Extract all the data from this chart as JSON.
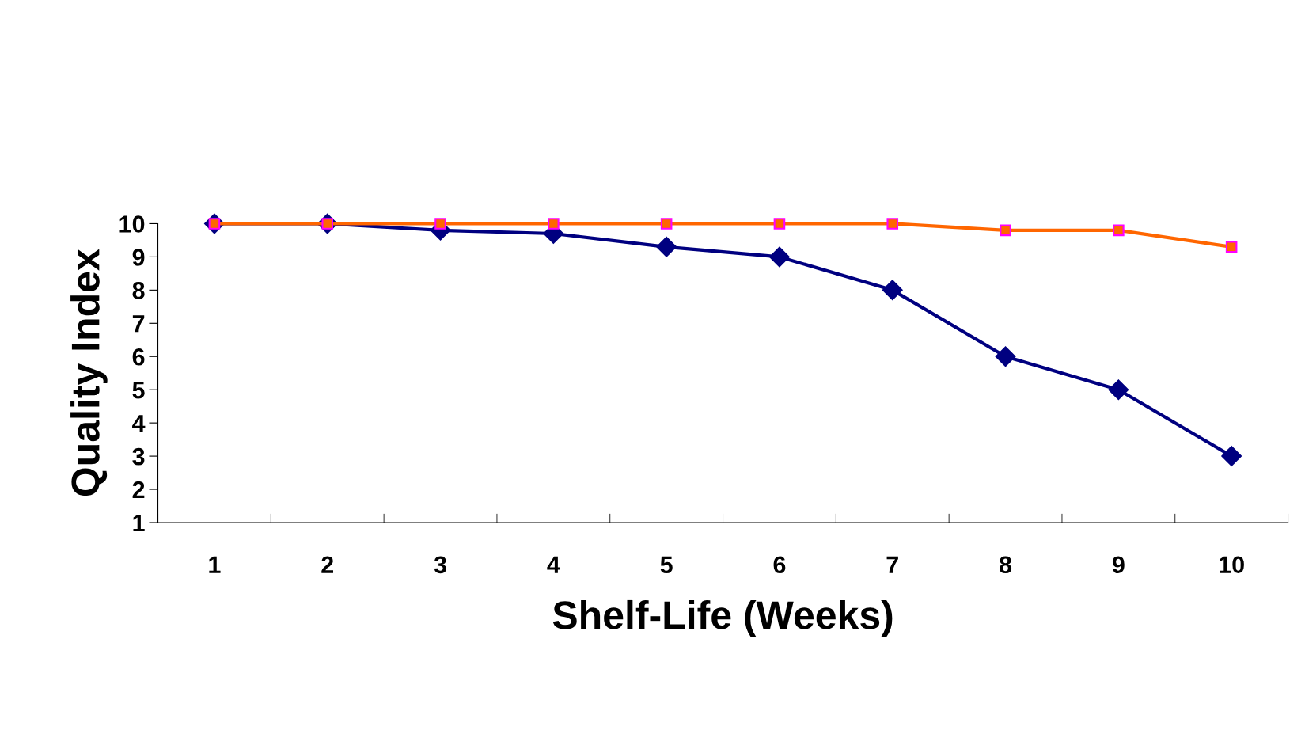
{
  "chart_data": {
    "type": "line",
    "xlabel": "Shelf-Life (Weeks)",
    "ylabel": "Quality Index",
    "categories": [
      "1",
      "2",
      "3",
      "4",
      "5",
      "6",
      "7",
      "8",
      "9",
      "10"
    ],
    "series": [
      {
        "color": "#000080",
        "marker": "diamond",
        "values": [
          10,
          10,
          9.8,
          9.7,
          9.3,
          9.0,
          8.0,
          6.0,
          5.0,
          3.0
        ]
      },
      {
        "color": "#ff6600",
        "marker": "square",
        "values": [
          10,
          10,
          10,
          10,
          10,
          10,
          10,
          9.8,
          9.8,
          9.3
        ]
      }
    ],
    "ylim": [
      1,
      10
    ],
    "yticks": [
      1,
      2,
      3,
      4,
      5,
      6,
      7,
      8,
      9,
      10
    ],
    "grid": false,
    "legend": false
  }
}
